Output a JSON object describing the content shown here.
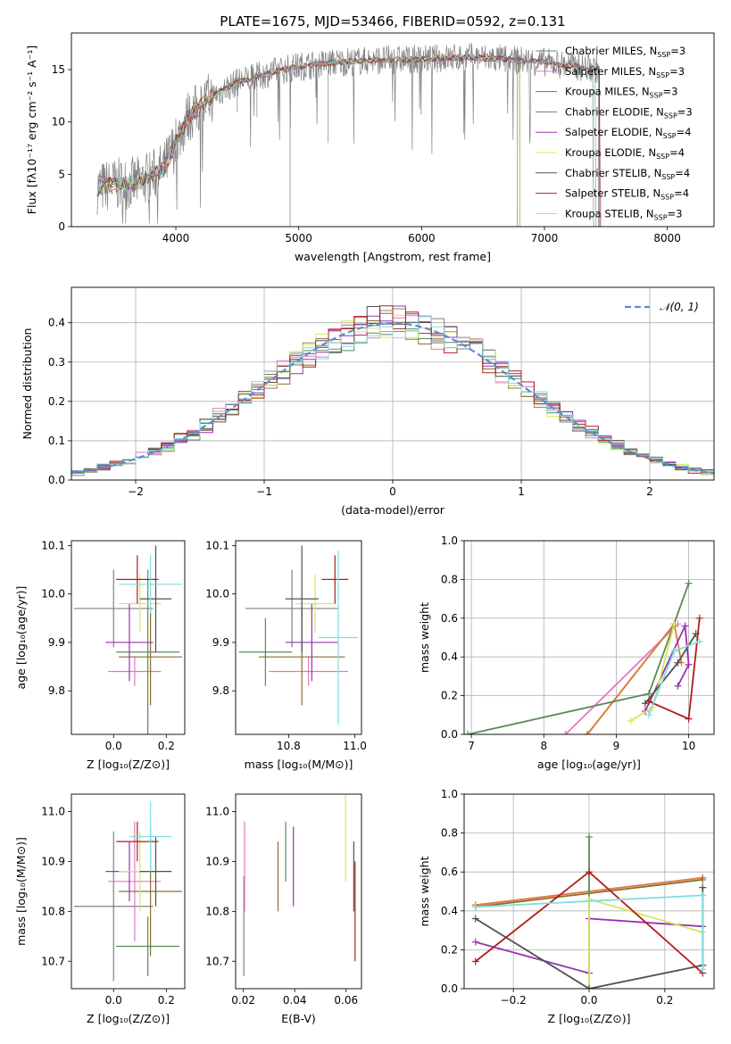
{
  "figure_title": "PLATE=1675, MJD=53466, FIBERID=0592, z=0.131",
  "colors": {
    "Chabrier MILES": "#808080",
    "Salpeter MILES": "#e377c2",
    "Kroupa MILES": "#8c6d31",
    "Chabrier ELODIE": "#5a8a5a",
    "Salpeter ELODIE": "#9b30b0",
    "Kroupa ELODIE": "#d8e85a",
    "Chabrier STELIB": "#505050",
    "Salpeter STELIB": "#b01c1c",
    "Kroupa STELIB": "#80dede",
    "orange": "#e07b39",
    "gauss": "#5b8bd9"
  },
  "chart_data": [
    {
      "type": "line",
      "name": "spectrum",
      "title": "PLATE=1675, MJD=53466, FIBERID=0592, z=0.131",
      "xlabel": "wavelength [Angstrom, rest frame]",
      "ylabel": "Flux [fλ10⁻¹⁷ erg cm⁻² s⁻¹ A⁻¹]",
      "xlim": [
        3150,
        8380
      ],
      "ylim": [
        0,
        18.5
      ],
      "xticks": [
        4000,
        5000,
        6000,
        7000,
        8000
      ],
      "yticks": [
        0,
        5,
        10,
        15
      ],
      "legend_position": "top-right",
      "legend": [
        "Chabrier MILES, N_SSP=3",
        "Salpeter MILES, N_SSP=3",
        "Kroupa MILES, N_SSP=3",
        "Chabrier ELODIE, N_SSP=3",
        "Salpeter ELODIE, N_SSP=4",
        "Kroupa ELODIE, N_SSP=4",
        "Chabrier STELIB, N_SSP=4",
        "Salpeter STELIB, N_SSP=4",
        "Kroupa STELIB, N_SSP=3"
      ],
      "legend_base": [
        "Chabrier MILES, N",
        "Salpeter MILES, N",
        "Kroupa MILES, N",
        "Chabrier ELODIE, N",
        "Salpeter ELODIE, N",
        "Kroupa ELODIE, N",
        "Chabrier STELIB, N",
        "Salpeter STELIB, N",
        "Kroupa STELIB, N"
      ],
      "legend_sub": "SSP",
      "legend_val": [
        "=3",
        "=3",
        "=3",
        "=3",
        "=4",
        "=4",
        "=4",
        "=4",
        "=3"
      ],
      "continuum_knots_x": [
        3360,
        3500,
        3700,
        3900,
        4000,
        4100,
        4300,
        4500,
        4800,
        5000,
        5300,
        5600,
        6000,
        6400,
        6800,
        7000,
        7400
      ],
      "continuum_knots_y": [
        3.7,
        4.0,
        4.2,
        5.5,
        8.0,
        10.5,
        12.5,
        13.8,
        14.8,
        15.3,
        15.7,
        15.9,
        16.0,
        16.2,
        15.9,
        15.7,
        15.1
      ]
    },
    {
      "type": "line",
      "name": "residual-histogram",
      "xlabel": "(data-model)/error",
      "ylabel": "Normed distribution",
      "xlim": [
        -2.5,
        2.5
      ],
      "ylim": [
        0,
        0.49
      ],
      "xticks": [
        -2,
        -1,
        0,
        1,
        2
      ],
      "xtick_labels": [
        "−2",
        "−1",
        "0",
        "1",
        "2"
      ],
      "yticks": [
        0,
        0.1,
        0.2,
        0.3,
        0.4
      ],
      "ytick_labels": [
        "0.0",
        "0.1",
        "0.2",
        "0.3",
        "0.4"
      ],
      "grid": true,
      "legend_position": "top-right",
      "legend": [
        "𝒩(0, 1)"
      ],
      "bin_width": 0.1
    },
    {
      "type": "scatter",
      "name": "age-vs-Z",
      "xlabel": "Z [log₁₀(Z/Z⊙)]",
      "ylabel": "age  [log₁₀(age/yr)]",
      "xlim": [
        -0.16,
        0.27
      ],
      "ylim": [
        9.71,
        10.11
      ],
      "xticks": [
        0.0,
        0.2
      ],
      "xtick_labels": [
        "0.0",
        "0.2"
      ],
      "yticks": [
        9.8,
        9.9,
        10.0,
        10.1
      ],
      "ytick_labels": [
        "9.8",
        "9.9",
        "10.0",
        "10.1"
      ],
      "points": [
        {
          "x": 0.0,
          "y": 9.97,
          "xerr": 0.15,
          "yerr": 0.08
        },
        {
          "x": 0.08,
          "y": 9.84,
          "xerr": 0.1,
          "yerr": 0.03
        },
        {
          "x": 0.14,
          "y": 9.87,
          "xerr": 0.12,
          "yerr": 0.1
        },
        {
          "x": 0.13,
          "y": 9.88,
          "xerr": 0.12,
          "yerr": 0.17
        },
        {
          "x": 0.06,
          "y": 9.9,
          "xerr": 0.09,
          "yerr": 0.08
        },
        {
          "x": 0.1,
          "y": 9.98,
          "xerr": 0.08,
          "yerr": 0.06
        },
        {
          "x": 0.16,
          "y": 9.99,
          "xerr": 0.06,
          "yerr": 0.11
        },
        {
          "x": 0.09,
          "y": 10.03,
          "xerr": 0.08,
          "yerr": 0.05
        },
        {
          "x": 0.14,
          "y": 10.02,
          "xerr": 0.12,
          "yerr": 0.06
        }
      ]
    },
    {
      "type": "scatter",
      "name": "age-vs-mass",
      "xlabel": "mass [log₁₀(M/M⊙)]",
      "xlim": [
        10.64,
        11.02
      ],
      "ylim": [
        9.71,
        10.11
      ],
      "xticks": [
        10.8,
        11.0
      ],
      "xtick_labels": [
        "10.8",
        "11.0"
      ],
      "yticks": [
        9.8,
        9.9,
        10.0,
        10.1
      ],
      "ytick_labels": [
        "9.8",
        "9.9",
        "10.0",
        "10.1"
      ],
      "points": [
        {
          "x": 10.81,
          "y": 9.97,
          "xerr": 0.14,
          "yerr": 0.08
        },
        {
          "x": 10.86,
          "y": 9.84,
          "xerr": 0.12,
          "yerr": 0.03
        },
        {
          "x": 10.84,
          "y": 9.87,
          "xerr": 0.13,
          "yerr": 0.1
        },
        {
          "x": 10.73,
          "y": 9.88,
          "xerr": 0.08,
          "yerr": 0.07
        },
        {
          "x": 10.87,
          "y": 9.9,
          "xerr": 0.08,
          "yerr": 0.08
        },
        {
          "x": 10.88,
          "y": 9.98,
          "xerr": 0.06,
          "yerr": 0.06
        },
        {
          "x": 10.84,
          "y": 9.99,
          "xerr": 0.05,
          "yerr": 0.11
        },
        {
          "x": 10.94,
          "y": 10.03,
          "xerr": 0.04,
          "yerr": 0.05
        },
        {
          "x": 10.95,
          "y": 9.91,
          "xerr": 0.06,
          "yerr": 0.18
        }
      ]
    },
    {
      "type": "line",
      "name": "mass-weight-vs-age",
      "xlabel": "age  [log₁₀(age/yr)]",
      "ylabel": "mass weight",
      "xlim": [
        6.9,
        10.35
      ],
      "ylim": [
        0,
        1.0
      ],
      "xticks": [
        7,
        8,
        9,
        10
      ],
      "yticks": [
        0,
        0.2,
        0.4,
        0.6,
        0.8,
        1.0
      ],
      "ytick_labels": [
        "0.0",
        "0.2",
        "0.4",
        "0.6",
        "0.8",
        "1.0"
      ],
      "grid": true,
      "series": [
        {
          "key": "Salpeter MILES",
          "x": [
            8.3,
            9.85
          ],
          "y": [
            0.0,
            0.57
          ]
        },
        {
          "key": "Kroupa MILES",
          "x": [
            8.6,
            9.8
          ],
          "y": [
            0.0,
            0.57
          ]
        },
        {
          "key": "orange",
          "x": [
            8.6,
            9.8,
            9.9
          ],
          "y": [
            0.0,
            0.57,
            0.37
          ]
        },
        {
          "key": "Chabrier ELODIE",
          "x": [
            6.95,
            9.45,
            10.0
          ],
          "y": [
            0.0,
            0.21,
            0.78
          ]
        },
        {
          "key": "Salpeter ELODIE",
          "x": [
            9.4,
            9.95,
            10.0,
            9.85
          ],
          "y": [
            0.12,
            0.56,
            0.36,
            0.25
          ]
        },
        {
          "key": "Kroupa ELODIE",
          "x": [
            9.2,
            9.5,
            9.8
          ],
          "y": [
            0.07,
            0.14,
            0.57
          ]
        },
        {
          "key": "Chabrier STELIB",
          "x": [
            9.4,
            9.85,
            10.1
          ],
          "y": [
            0.16,
            0.37,
            0.52
          ]
        },
        {
          "key": "Salpeter STELIB",
          "x": [
            9.45,
            10.0,
            10.15
          ],
          "y": [
            0.17,
            0.08,
            0.6
          ]
        },
        {
          "key": "Kroupa STELIB",
          "x": [
            9.45,
            9.8,
            10.15
          ],
          "y": [
            0.1,
            0.43,
            0.48
          ]
        }
      ]
    },
    {
      "type": "scatter",
      "name": "mass-vs-Z",
      "xlabel": "Z [log₁₀(Z/Z⊙)]",
      "ylabel": "mass [log₁₀(M/M⊙)]",
      "xlim": [
        -0.16,
        0.27
      ],
      "ylim": [
        10.645,
        11.035
      ],
      "xticks": [
        0.0,
        0.2
      ],
      "xtick_labels": [
        "0.0",
        "0.2"
      ],
      "yticks": [
        10.7,
        10.8,
        10.9,
        11.0
      ],
      "ytick_labels": [
        "10.7",
        "10.8",
        "10.9",
        "11.0"
      ],
      "points": [
        {
          "x": 0.0,
          "y": 10.81,
          "xerr": 0.15,
          "yerr": 0.15
        },
        {
          "x": 0.08,
          "y": 10.86,
          "xerr": 0.1,
          "yerr": 0.12
        },
        {
          "x": 0.14,
          "y": 10.84,
          "xerr": 0.12,
          "yerr": 0.13
        },
        {
          "x": 0.13,
          "y": 10.73,
          "xerr": 0.12,
          "yerr": 0.06
        },
        {
          "x": 0.06,
          "y": 10.88,
          "xerr": 0.09,
          "yerr": 0.06
        },
        {
          "x": 0.1,
          "y": 10.88,
          "xerr": 0.08,
          "yerr": 0.08
        },
        {
          "x": 0.16,
          "y": 10.88,
          "xerr": 0.06,
          "yerr": 0.07
        },
        {
          "x": 0.09,
          "y": 10.94,
          "xerr": 0.08,
          "yerr": 0.04
        },
        {
          "x": 0.14,
          "y": 10.95,
          "xerr": 0.08,
          "yerr": 0.07
        }
      ]
    },
    {
      "type": "scatter",
      "name": "mass-vs-EBV",
      "xlabel": "E(B-V)",
      "xlim": [
        0.017,
        0.066
      ],
      "ylim": [
        10.645,
        11.035
      ],
      "xticks": [
        0.02,
        0.04,
        0.06
      ],
      "xtick_labels": [
        "0.02",
        "0.04",
        "0.06"
      ],
      "yticks": [
        10.7,
        10.8,
        10.9,
        11.0
      ],
      "ytick_labels": [
        "10.7",
        "10.8",
        "10.9",
        "11.0"
      ],
      "points": [
        {
          "x": 0.0202,
          "y": 10.77,
          "xerr": 0,
          "yerr": 0.1
        },
        {
          "x": 0.0205,
          "y": 10.89,
          "xerr": 0,
          "yerr": 0.09
        },
        {
          "x": 0.0335,
          "y": 10.87,
          "xerr": 0,
          "yerr": 0.07
        },
        {
          "x": 0.0365,
          "y": 10.92,
          "xerr": 0,
          "yerr": 0.06
        },
        {
          "x": 0.0395,
          "y": 10.89,
          "xerr": 0,
          "yerr": 0.08
        },
        {
          "x": 0.0598,
          "y": 11.0,
          "xerr": 0,
          "yerr": 0.14
        },
        {
          "x": 0.063,
          "y": 10.87,
          "xerr": 0,
          "yerr": 0.07
        },
        {
          "x": 0.0635,
          "y": 10.8,
          "xerr": 0,
          "yerr": 0.1
        }
      ]
    },
    {
      "type": "line",
      "name": "mass-weight-vs-Z",
      "xlabel": "Z [log₁₀(Z/Z⊙)]",
      "ylabel": "mass weight",
      "xlim": [
        -0.33,
        0.33
      ],
      "ylim": [
        0,
        1.0
      ],
      "xticks": [
        -0.2,
        0.0,
        0.2
      ],
      "xtick_labels": [
        "−0.2",
        "0.0",
        "0.2"
      ],
      "yticks": [
        0,
        0.2,
        0.4,
        0.6,
        0.8,
        1.0
      ],
      "ytick_labels": [
        "0.0",
        "0.2",
        "0.4",
        "0.6",
        "0.8",
        "1.0"
      ],
      "grid": true,
      "series": [
        {
          "key": "Salpeter MILES",
          "x": [
            -0.3,
            0.3
          ],
          "y": [
            0.43,
            0.57
          ]
        },
        {
          "key": "orange",
          "x": [
            -0.3,
            0.3
          ],
          "y": [
            0.43,
            0.57
          ]
        },
        {
          "key": "Kroupa MILES",
          "x": [
            -0.3,
            0.3
          ],
          "y": [
            0.42,
            0.56
          ]
        },
        {
          "key": "Chabrier ELODIE",
          "x": [
            0.0,
            0.0
          ],
          "y": [
            0.0,
            0.78
          ]
        },
        {
          "key": "Salpeter ELODIE",
          "x": [
            -0.3,
            0.0,
            0.0,
            0.3
          ],
          "y": [
            0.24,
            0.08,
            0.36,
            0.32
          ]
        },
        {
          "key": "Kroupa ELODIE",
          "x": [
            0.0,
            0.0,
            0.3
          ],
          "y": [
            0.0,
            0.46,
            0.29
          ]
        },
        {
          "key": "Chabrier STELIB",
          "x": [
            -0.3,
            0.0,
            0.3,
            0.3
          ],
          "y": [
            0.36,
            0.0,
            0.12,
            0.52
          ]
        },
        {
          "key": "Salpeter STELIB",
          "x": [
            -0.3,
            0.0,
            0.3
          ],
          "y": [
            0.14,
            0.6,
            0.08
          ]
        },
        {
          "key": "Kroupa STELIB",
          "x": [
            -0.3,
            0.3,
            0.3
          ],
          "y": [
            0.42,
            0.48,
            0.1
          ]
        }
      ]
    }
  ]
}
